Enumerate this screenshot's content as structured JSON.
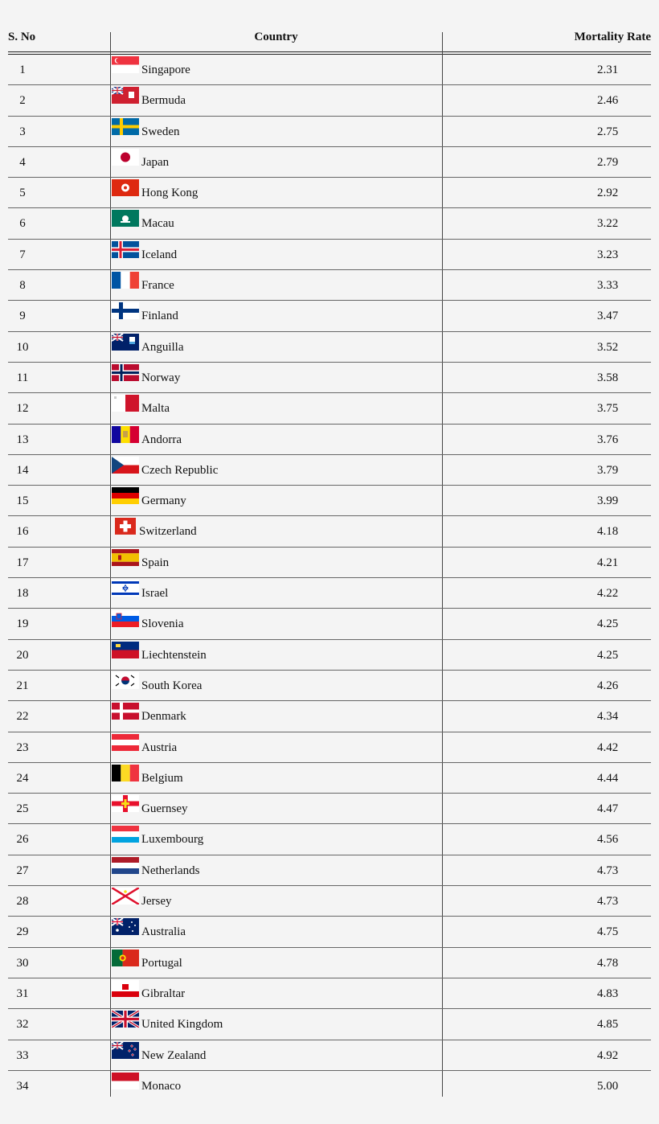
{
  "table": {
    "headers": {
      "sno": "S. No",
      "country": "Country",
      "rate": "Mortality Rate"
    },
    "rows": [
      {
        "sno": "1",
        "country": "Singapore",
        "rate": "2.31",
        "flag": "singapore-flag-icon"
      },
      {
        "sno": "2",
        "country": "Bermuda",
        "rate": "2.46",
        "flag": "bermuda-flag-icon"
      },
      {
        "sno": "3",
        "country": "Sweden",
        "rate": "2.75",
        "flag": "sweden-flag-icon"
      },
      {
        "sno": "4",
        "country": "Japan",
        "rate": "2.79",
        "flag": "japan-flag-icon"
      },
      {
        "sno": "5",
        "country": "Hong Kong",
        "rate": "2.92",
        "flag": "hong-kong-flag-icon"
      },
      {
        "sno": "6",
        "country": "Macau",
        "rate": "3.22",
        "flag": "macau-flag-icon"
      },
      {
        "sno": "7",
        "country": "Iceland",
        "rate": "3.23",
        "flag": "iceland-flag-icon"
      },
      {
        "sno": "8",
        "country": "France",
        "rate": "3.33",
        "flag": "france-flag-icon"
      },
      {
        "sno": "9",
        "country": "Finland",
        "rate": "3.47",
        "flag": "finland-flag-icon"
      },
      {
        "sno": "10",
        "country": "Anguilla",
        "rate": "3.52",
        "flag": "anguilla-flag-icon"
      },
      {
        "sno": "11",
        "country": "Norway",
        "rate": "3.58",
        "flag": "norway-flag-icon"
      },
      {
        "sno": "12",
        "country": "Malta",
        "rate": "3.75",
        "flag": "malta-flag-icon"
      },
      {
        "sno": "13",
        "country": "Andorra",
        "rate": "3.76",
        "flag": "andorra-flag-icon"
      },
      {
        "sno": "14",
        "country": "Czech Republic",
        "rate": "3.79",
        "flag": "czech-flag-icon"
      },
      {
        "sno": "15",
        "country": "Germany",
        "rate": "3.99",
        "flag": "germany-flag-icon"
      },
      {
        "sno": "16",
        "country": "Switzerland",
        "rate": "4.18",
        "flag": "switzerland-flag-icon"
      },
      {
        "sno": "17",
        "country": "Spain",
        "rate": "4.21",
        "flag": "spain-flag-icon"
      },
      {
        "sno": "18",
        "country": "Israel",
        "rate": "4.22",
        "flag": "israel-flag-icon"
      },
      {
        "sno": "19",
        "country": "Slovenia",
        "rate": "4.25",
        "flag": "slovenia-flag-icon"
      },
      {
        "sno": "20",
        "country": "Liechtenstein",
        "rate": "4.25",
        "flag": "liechtenstein-flag-icon"
      },
      {
        "sno": "21",
        "country": "South Korea",
        "rate": "4.26",
        "flag": "south-korea-flag-icon"
      },
      {
        "sno": "22",
        "country": "Denmark",
        "rate": "4.34",
        "flag": "denmark-flag-icon"
      },
      {
        "sno": "23",
        "country": "Austria",
        "rate": "4.42",
        "flag": "austria-flag-icon"
      },
      {
        "sno": "24",
        "country": "Belgium",
        "rate": "4.44",
        "flag": "belgium-flag-icon"
      },
      {
        "sno": "25",
        "country": "Guernsey",
        "rate": "4.47",
        "flag": "guernsey-flag-icon"
      },
      {
        "sno": "26",
        "country": "Luxembourg",
        "rate": "4.56",
        "flag": "luxembourg-flag-icon"
      },
      {
        "sno": "27",
        "country": "Netherlands",
        "rate": "4.73",
        "flag": "netherlands-flag-icon"
      },
      {
        "sno": "28",
        "country": "Jersey",
        "rate": "4.73",
        "flag": "jersey-flag-icon"
      },
      {
        "sno": "29",
        "country": "Australia",
        "rate": "4.75",
        "flag": "australia-flag-icon"
      },
      {
        "sno": "30",
        "country": "Portugal",
        "rate": "4.78",
        "flag": "portugal-flag-icon"
      },
      {
        "sno": "31",
        "country": "Gibraltar",
        "rate": "4.83",
        "flag": "gibraltar-flag-icon"
      },
      {
        "sno": "32",
        "country": "United Kingdom",
        "rate": "4.85",
        "flag": "united-kingdom-flag-icon"
      },
      {
        "sno": "33",
        "country": "New Zealand",
        "rate": "4.92",
        "flag": "new-zealand-flag-icon"
      },
      {
        "sno": "34",
        "country": "Monaco",
        "rate": "5.00",
        "flag": "monaco-flag-icon"
      }
    ]
  }
}
